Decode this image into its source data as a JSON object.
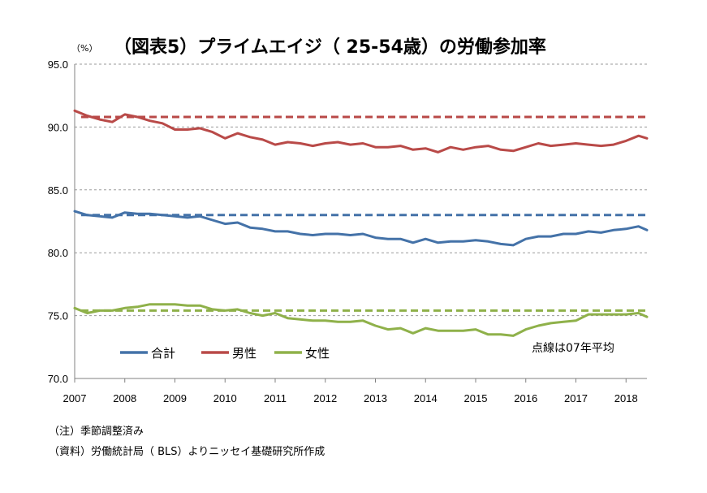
{
  "chart_data": {
    "type": "line",
    "title": "（図表5）プライムエイジ（ 25-54歳）の労働参加率",
    "ylabel": "（%）",
    "ylim": [
      70,
      95
    ],
    "yticks": [
      "95.0",
      "90.0",
      "85.0",
      "80.0",
      "75.0",
      "70.0"
    ],
    "xticks": [
      "2007",
      "2008",
      "2009",
      "2010",
      "2011",
      "2012",
      "2013",
      "2014",
      "2015",
      "2016",
      "2017",
      "2018"
    ],
    "xlim": [
      2007.0,
      2018.417
    ],
    "grid": "horizontal-dashed",
    "legend": "bottom-left",
    "annotation": "点線は07年平均",
    "series": [
      {
        "name": "合計",
        "color": "#4472a8",
        "average": 83.0,
        "points": [
          [
            2007.0,
            83.3
          ],
          [
            2007.25,
            83.0
          ],
          [
            2007.5,
            82.9
          ],
          [
            2007.75,
            82.8
          ],
          [
            2008.0,
            83.2
          ],
          [
            2008.25,
            83.1
          ],
          [
            2008.5,
            83.1
          ],
          [
            2008.75,
            83.0
          ],
          [
            2009.0,
            82.9
          ],
          [
            2009.25,
            82.8
          ],
          [
            2009.5,
            82.9
          ],
          [
            2009.75,
            82.6
          ],
          [
            2010.0,
            82.3
          ],
          [
            2010.25,
            82.4
          ],
          [
            2010.5,
            82.0
          ],
          [
            2010.75,
            81.9
          ],
          [
            2011.0,
            81.7
          ],
          [
            2011.25,
            81.7
          ],
          [
            2011.5,
            81.5
          ],
          [
            2011.75,
            81.4
          ],
          [
            2012.0,
            81.5
          ],
          [
            2012.25,
            81.5
          ],
          [
            2012.5,
            81.4
          ],
          [
            2012.75,
            81.5
          ],
          [
            2013.0,
            81.2
          ],
          [
            2013.25,
            81.1
          ],
          [
            2013.5,
            81.1
          ],
          [
            2013.75,
            80.8
          ],
          [
            2014.0,
            81.1
          ],
          [
            2014.25,
            80.8
          ],
          [
            2014.5,
            80.9
          ],
          [
            2014.75,
            80.9
          ],
          [
            2015.0,
            81.0
          ],
          [
            2015.25,
            80.9
          ],
          [
            2015.5,
            80.7
          ],
          [
            2015.75,
            80.6
          ],
          [
            2016.0,
            81.1
          ],
          [
            2016.25,
            81.3
          ],
          [
            2016.5,
            81.3
          ],
          [
            2016.75,
            81.5
          ],
          [
            2017.0,
            81.5
          ],
          [
            2017.25,
            81.7
          ],
          [
            2017.5,
            81.6
          ],
          [
            2017.75,
            81.8
          ],
          [
            2018.0,
            81.9
          ],
          [
            2018.25,
            82.1
          ],
          [
            2018.417,
            81.8
          ]
        ]
      },
      {
        "name": "男性",
        "color": "#b94a48",
        "average": 90.8,
        "points": [
          [
            2007.0,
            91.3
          ],
          [
            2007.25,
            90.9
          ],
          [
            2007.5,
            90.6
          ],
          [
            2007.75,
            90.4
          ],
          [
            2008.0,
            91.0
          ],
          [
            2008.25,
            90.8
          ],
          [
            2008.5,
            90.5
          ],
          [
            2008.75,
            90.3
          ],
          [
            2009.0,
            89.8
          ],
          [
            2009.25,
            89.8
          ],
          [
            2009.5,
            89.9
          ],
          [
            2009.75,
            89.6
          ],
          [
            2010.0,
            89.1
          ],
          [
            2010.25,
            89.5
          ],
          [
            2010.5,
            89.2
          ],
          [
            2010.75,
            89.0
          ],
          [
            2011.0,
            88.6
          ],
          [
            2011.25,
            88.8
          ],
          [
            2011.5,
            88.7
          ],
          [
            2011.75,
            88.5
          ],
          [
            2012.0,
            88.7
          ],
          [
            2012.25,
            88.8
          ],
          [
            2012.5,
            88.6
          ],
          [
            2012.75,
            88.7
          ],
          [
            2013.0,
            88.4
          ],
          [
            2013.25,
            88.4
          ],
          [
            2013.5,
            88.5
          ],
          [
            2013.75,
            88.2
          ],
          [
            2014.0,
            88.3
          ],
          [
            2014.25,
            88.0
          ],
          [
            2014.5,
            88.4
          ],
          [
            2014.75,
            88.2
          ],
          [
            2015.0,
            88.4
          ],
          [
            2015.25,
            88.5
          ],
          [
            2015.5,
            88.2
          ],
          [
            2015.75,
            88.1
          ],
          [
            2016.0,
            88.4
          ],
          [
            2016.25,
            88.7
          ],
          [
            2016.5,
            88.5
          ],
          [
            2016.75,
            88.6
          ],
          [
            2017.0,
            88.7
          ],
          [
            2017.25,
            88.6
          ],
          [
            2017.5,
            88.5
          ],
          [
            2017.75,
            88.6
          ],
          [
            2018.0,
            88.9
          ],
          [
            2018.25,
            89.3
          ],
          [
            2018.417,
            89.1
          ]
        ]
      },
      {
        "name": "女性",
        "color": "#8fb14a",
        "average": 75.4,
        "points": [
          [
            2007.0,
            75.6
          ],
          [
            2007.25,
            75.2
          ],
          [
            2007.5,
            75.4
          ],
          [
            2007.75,
            75.4
          ],
          [
            2008.0,
            75.6
          ],
          [
            2008.25,
            75.7
          ],
          [
            2008.5,
            75.9
          ],
          [
            2008.75,
            75.9
          ],
          [
            2009.0,
            75.9
          ],
          [
            2009.25,
            75.8
          ],
          [
            2009.5,
            75.8
          ],
          [
            2009.75,
            75.5
          ],
          [
            2010.0,
            75.4
          ],
          [
            2010.25,
            75.5
          ],
          [
            2010.5,
            75.2
          ],
          [
            2010.75,
            75.0
          ],
          [
            2011.0,
            75.2
          ],
          [
            2011.25,
            74.8
          ],
          [
            2011.5,
            74.7
          ],
          [
            2011.75,
            74.6
          ],
          [
            2012.0,
            74.6
          ],
          [
            2012.25,
            74.5
          ],
          [
            2012.5,
            74.5
          ],
          [
            2012.75,
            74.6
          ],
          [
            2013.0,
            74.2
          ],
          [
            2013.25,
            73.9
          ],
          [
            2013.5,
            74.0
          ],
          [
            2013.75,
            73.6
          ],
          [
            2014.0,
            74.0
          ],
          [
            2014.25,
            73.8
          ],
          [
            2014.5,
            73.8
          ],
          [
            2014.75,
            73.8
          ],
          [
            2015.0,
            73.9
          ],
          [
            2015.25,
            73.5
          ],
          [
            2015.5,
            73.5
          ],
          [
            2015.75,
            73.4
          ],
          [
            2016.0,
            73.9
          ],
          [
            2016.25,
            74.2
          ],
          [
            2016.5,
            74.4
          ],
          [
            2016.75,
            74.5
          ],
          [
            2017.0,
            74.6
          ],
          [
            2017.25,
            75.1
          ],
          [
            2017.5,
            75.1
          ],
          [
            2017.75,
            75.1
          ],
          [
            2018.0,
            75.1
          ],
          [
            2018.25,
            75.2
          ],
          [
            2018.417,
            74.9
          ]
        ]
      }
    ]
  },
  "notes": [
    "（注）季節調整済み",
    "（資料）労働統計局（ BLS）よりニッセイ基礎研究所作成"
  ]
}
